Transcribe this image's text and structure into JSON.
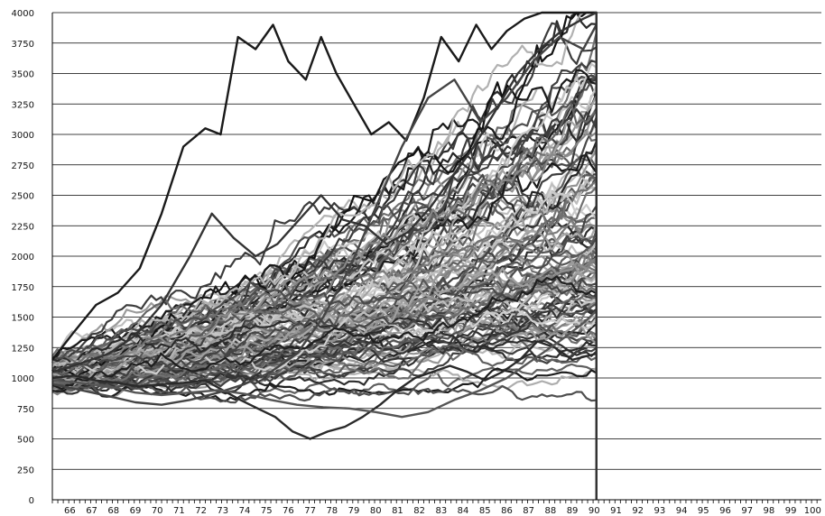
{
  "chart_data": {
    "type": "line",
    "title": "",
    "xlabel": "",
    "ylabel": "",
    "xlim": [
      65.2,
      100.4
    ],
    "ylim": [
      0,
      4000
    ],
    "grid": "horizontal",
    "legend": "none",
    "x_ticks": [
      "66",
      "67",
      "68",
      "69",
      "70",
      "71",
      "72",
      "73",
      "74",
      "75",
      "76",
      "77",
      "78",
      "79",
      "80",
      "81",
      "82",
      "83",
      "84",
      "85",
      "86",
      "87",
      "88",
      "89",
      "90",
      "91",
      "92",
      "93",
      "94",
      "95",
      "96",
      "97",
      "98",
      "99",
      "100"
    ],
    "y_ticks": [
      "0",
      "250",
      "500",
      "750",
      "1000",
      "1250",
      "1500",
      "1750",
      "2000",
      "2250",
      "2500",
      "2750",
      "3000",
      "3250",
      "3500",
      "3750",
      "4000"
    ],
    "simulation": {
      "path_count": 120,
      "start_year": 65.2,
      "end_year": 90.1,
      "start_value_range": [
        880,
        1180
      ],
      "end_value_range": [
        1200,
        4000
      ],
      "drop_to_value": 0,
      "color_range": [
        "#111111",
        "#d0d0d0"
      ]
    },
    "highlight_series": [
      {
        "name": "",
        "color": "#1a1a1a",
        "x": [
          65.2,
          66.2,
          67.2,
          68.2,
          69.2,
          70.2,
          71.2,
          72.2,
          72.9,
          73.7,
          74.5,
          75.3,
          76.0,
          76.8,
          77.5,
          78.2,
          79.0,
          79.8,
          80.6,
          81.4,
          82.2,
          83.0,
          83.8,
          84.6,
          85.3,
          86.0,
          86.8,
          87.6,
          88.4,
          89.2,
          90.1
        ],
        "y": [
          1150,
          1380,
          1600,
          1700,
          1900,
          2350,
          2900,
          3050,
          3000,
          3800,
          3700,
          3900,
          3600,
          3450,
          3800,
          3500,
          3250,
          3000,
          3100,
          2950,
          3300,
          3800,
          3600,
          3900,
          3700,
          3850,
          3950,
          4000,
          4000,
          4000,
          4000
        ]
      },
      {
        "name": "",
        "color": "#2a2a2a",
        "x": [
          65.2,
          66.2,
          67.2,
          68.2,
          69.2,
          70.2,
          71.2,
          72.2,
          73.0,
          73.8,
          74.6,
          75.4,
          76.2,
          77.0,
          77.8,
          78.6,
          79.4,
          80.2,
          81.0,
          81.8,
          82.6,
          83.4,
          84.2,
          85.0,
          85.8,
          86.6,
          87.4,
          88.2,
          89.0,
          90.1
        ],
        "y": [
          1000,
          1020,
          980,
          960,
          930,
          950,
          960,
          980,
          900,
          820,
          750,
          680,
          560,
          500,
          560,
          600,
          680,
          780,
          900,
          1000,
          1050,
          1100,
          1050,
          980,
          1050,
          1150,
          1300,
          1250,
          1150,
          1200
        ]
      },
      {
        "name": "",
        "color": "#444444",
        "x": [
          65.2,
          66.5,
          67.8,
          69.0,
          70.2,
          71.5,
          72.8,
          74.0,
          75.2,
          76.4,
          77.6,
          78.8,
          80.0,
          81.2,
          82.4,
          83.6,
          84.8,
          86.0,
          87.2,
          88.4,
          89.5,
          90.1
        ],
        "y": [
          950,
          900,
          850,
          800,
          780,
          820,
          880,
          950,
          1050,
          1200,
          1500,
          1900,
          2400,
          2900,
          3300,
          3450,
          3100,
          3300,
          3600,
          3800,
          3700,
          3900
        ]
      },
      {
        "name": "",
        "color": "#555555",
        "x": [
          65.2,
          66.5,
          67.8,
          69.0,
          70.2,
          71.5,
          72.8,
          74.0,
          75.2,
          76.4,
          77.6,
          78.8,
          80.0,
          81.2,
          82.4,
          83.6,
          84.8,
          86.0,
          87.2,
          88.4,
          89.5,
          90.1
        ],
        "y": [
          980,
          960,
          930,
          880,
          860,
          880,
          900,
          870,
          820,
          780,
          760,
          750,
          720,
          680,
          720,
          820,
          900,
          1000,
          1150,
          1300,
          1450,
          1550
        ]
      },
      {
        "name": "",
        "color": "#333333",
        "x": [
          65.2,
          66.5,
          67.8,
          69.0,
          70.2,
          71.5,
          72.5,
          73.5,
          74.5,
          75.5,
          76.5,
          77.5,
          78.5,
          79.5,
          80.5,
          81.5,
          82.5,
          83.5,
          84.5,
          85.5,
          86.5,
          87.5,
          88.5,
          89.5,
          90.1
        ],
        "y": [
          1050,
          1120,
          1200,
          1350,
          1600,
          2000,
          2350,
          2150,
          2000,
          2100,
          2300,
          2500,
          2300,
          2250,
          2100,
          2200,
          2400,
          2650,
          2900,
          3200,
          3500,
          3700,
          3850,
          3950,
          4000
        ]
      }
    ]
  }
}
